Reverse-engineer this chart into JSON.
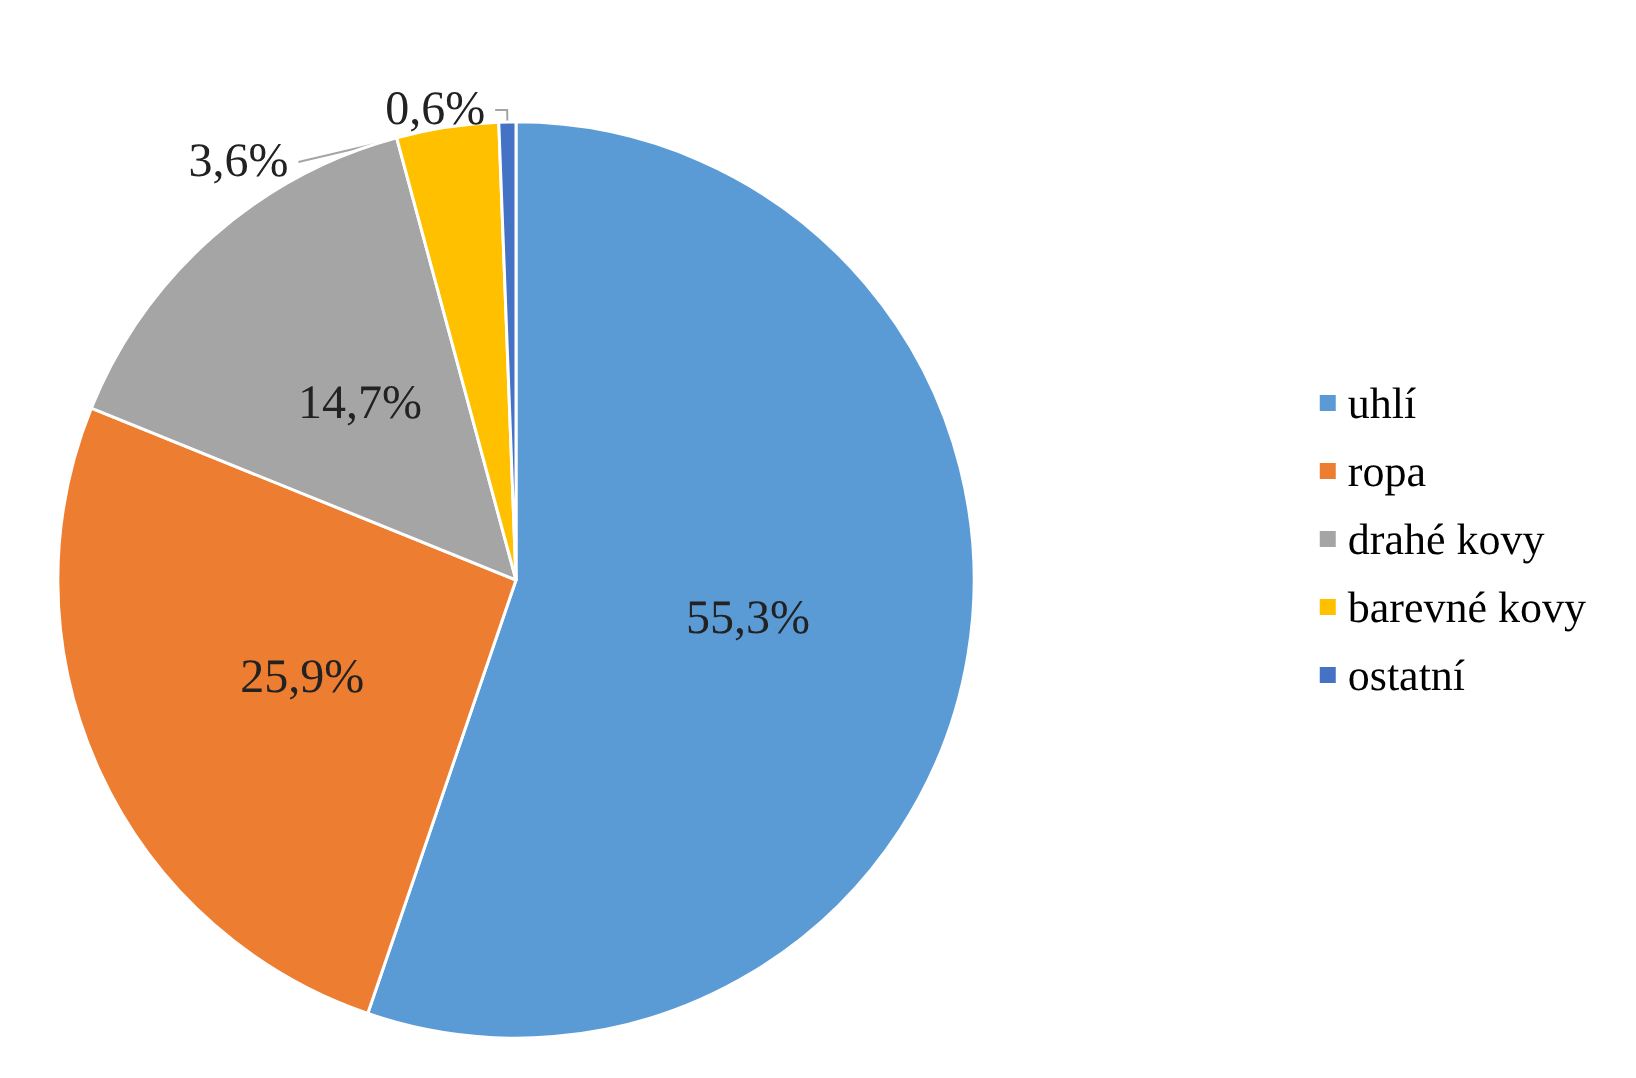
{
  "chart_data": {
    "type": "pie",
    "categories": [
      "uhlí",
      "ropa",
      "drahé kovy",
      "barevné kovy",
      "ostatní"
    ],
    "values": [
      55.3,
      25.9,
      14.7,
      3.6,
      0.6
    ],
    "colors": [
      "#5b9bd5",
      "#ed7d31",
      "#a5a5a5",
      "#ffc000",
      "#4472c4"
    ],
    "value_labels": [
      "55,3%",
      "25,9%",
      "14,7%",
      "3,6%",
      "0,6%"
    ],
    "legend": "right"
  }
}
